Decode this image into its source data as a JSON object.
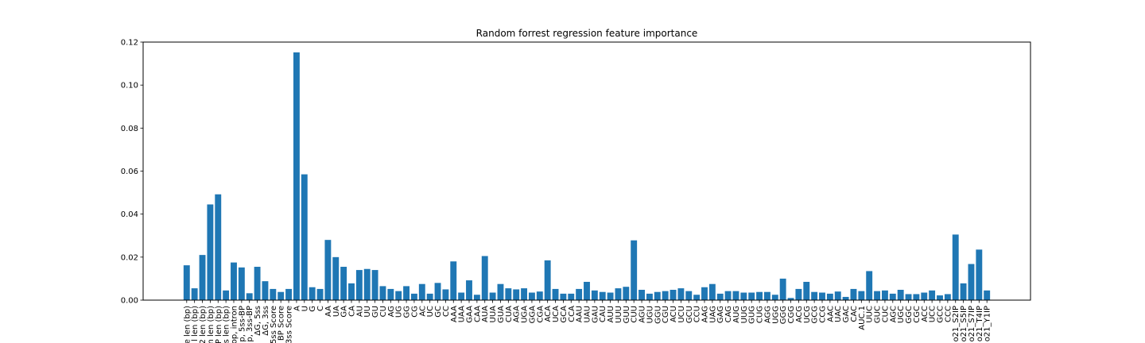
{
  "chart_data": {
    "type": "bar",
    "title": "Random forrest regression feature importance",
    "xlabel": "",
    "ylabel": "",
    "ylim": [
      0,
      0.12
    ],
    "yticks": [
      "0.00",
      "0.02",
      "0.04",
      "0.06",
      "0.08",
      "0.10",
      "0.12"
    ],
    "bar_color": "#1f77b4",
    "categories": [
      "e len (bp)",
      "l len (bp)",
      "2 len (bp)",
      "n len (bp)",
      "P len (bp)",
      "s len (bp)",
      "op, intron",
      "p, 5ss-BP",
      "p, 3ss-BP",
      "ΔG, 5ss",
      "ΔG, 3ss",
      "5ss Score",
      "BP Score",
      "3ss Score",
      "A",
      "U",
      "G",
      "C",
      "AA",
      "UA",
      "GA",
      "CA",
      "AU",
      "UU",
      "GU",
      "CU",
      "AG",
      "UG",
      "GG",
      "CG",
      "AC",
      "UC",
      "GC",
      "CC",
      "AAA",
      "UAA",
      "GAA",
      "CAA",
      "AUA",
      "UUA",
      "GUA",
      "CUA",
      "AGA",
      "UGA",
      "GGA",
      "CGA",
      "ACA",
      "UCA",
      "GCA",
      "CCA",
      "AAU",
      "UAU",
      "GAU",
      "CAU",
      "AUU",
      "UUU",
      "GUU",
      "CUU",
      "AGU",
      "UGU",
      "GGU",
      "CGU",
      "ACU",
      "UCU",
      "GCU",
      "CCU",
      "AAG",
      "UAG",
      "GAG",
      "CAG",
      "AUG",
      "UUG",
      "GUG",
      "CUG",
      "AGG",
      "UGG",
      "GGG",
      "CGG",
      "ACG",
      "UCG",
      "GCG",
      "CCG",
      "AAC",
      "UAC",
      "GAC",
      "CAC",
      "AUC.1",
      "UUC",
      "GUC",
      "CUC",
      "AGC",
      "UGC",
      "GGC",
      "CGC",
      "ACC",
      "UCC",
      "GCC",
      "CCC",
      "o21_S2IP",
      "o21_S5IP",
      "o21_S7IP",
      "o21_T4IP",
      "o21_Y1IP"
    ],
    "values": [
      0.0162,
      0.0055,
      0.021,
      0.0445,
      0.0492,
      0.0045,
      0.0175,
      0.0152,
      0.0032,
      0.0155,
      0.0088,
      0.0052,
      0.0038,
      0.0052,
      0.1152,
      0.0585,
      0.006,
      0.0052,
      0.028,
      0.02,
      0.0155,
      0.0078,
      0.014,
      0.0145,
      0.014,
      0.0065,
      0.0052,
      0.0042,
      0.0065,
      0.003,
      0.0075,
      0.003,
      0.008,
      0.005,
      0.018,
      0.0035,
      0.0092,
      0.0025,
      0.0205,
      0.0035,
      0.0075,
      0.0055,
      0.005,
      0.0055,
      0.0035,
      0.004,
      0.0185,
      0.0052,
      0.003,
      0.003,
      0.0052,
      0.0085,
      0.0045,
      0.0038,
      0.0035,
      0.0055,
      0.0062,
      0.0278,
      0.0048,
      0.003,
      0.0038,
      0.0042,
      0.0048,
      0.0055,
      0.0042,
      0.0025,
      0.006,
      0.0075,
      0.003,
      0.0042,
      0.0042,
      0.0035,
      0.0035,
      0.0038,
      0.0038,
      0.0025,
      0.01,
      0.001,
      0.0052,
      0.0085,
      0.0038,
      0.0035,
      0.003,
      0.004,
      0.0015,
      0.0052,
      0.0042,
      0.0135,
      0.0042,
      0.0045,
      0.003,
      0.0048,
      0.0028,
      0.0028,
      0.0035,
      0.0045,
      0.0022,
      0.0028,
      0.0305,
      0.0078,
      0.0168,
      0.0235,
      0.0045
    ]
  }
}
